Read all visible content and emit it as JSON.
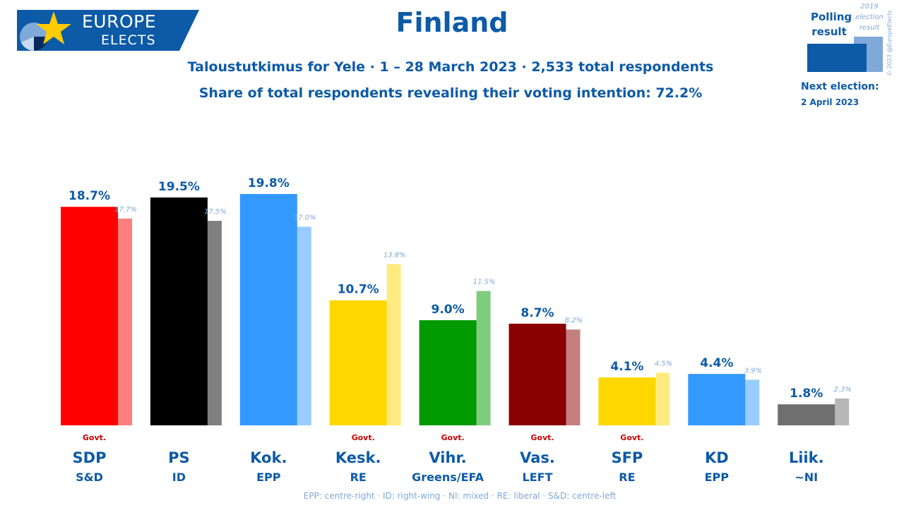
{
  "header": {
    "logo_line1": "EUROPE",
    "logo_line2": "ELECTS",
    "title": "Finland",
    "subtitle1": "Taloustutkimus for Yele · 1 – 28 March 2023 · 2,533 total respondents",
    "subtitle2": "Share of total respondents revealing their voting intention: 72.2%"
  },
  "legend": {
    "polling": "Polling result",
    "previous": "2019 election result",
    "next_label": "Next election:",
    "next_date": "2 April 2023",
    "copyright": "© 2023 @EuropeElects"
  },
  "footer": "EPP: centre-right · ID: right-wing · NI: mixed · RE: liberal · S&D: centre-left",
  "colors": {
    "brand": "#0d5aa7",
    "previous_text": "#7fa9d8",
    "govt": "#cc0000"
  },
  "chart_data": {
    "type": "bar",
    "title": "Finland",
    "series": [
      {
        "name": "Polling result",
        "values": [
          18.7,
          19.5,
          19.8,
          10.7,
          9.0,
          8.7,
          4.1,
          4.4,
          1.8
        ]
      },
      {
        "name": "2019 election result",
        "values": [
          17.7,
          17.5,
          17.0,
          13.8,
          11.5,
          8.2,
          4.5,
          3.9,
          2.3
        ]
      }
    ],
    "parties": [
      {
        "name": "SDP",
        "group": "S&D",
        "poll": 18.7,
        "poll_label": "18.7%",
        "prev": 17.7,
        "prev_label": "17.7%",
        "govt": "Govt.",
        "color": "#ff0000",
        "color_prev": "#ff7f7f"
      },
      {
        "name": "PS",
        "group": "ID",
        "poll": 19.5,
        "poll_label": "19.5%",
        "prev": 17.5,
        "prev_label": "17.5%",
        "govt": "",
        "color": "#000000",
        "color_prev": "#7f7f7f"
      },
      {
        "name": "Kok.",
        "group": "EPP",
        "poll": 19.8,
        "poll_label": "19.8%",
        "prev": 17.0,
        "prev_label": "17.0%",
        "govt": "",
        "color": "#3399ff",
        "color_prev": "#99ccff"
      },
      {
        "name": "Kesk.",
        "group": "RE",
        "poll": 10.7,
        "poll_label": "10.7%",
        "prev": 13.8,
        "prev_label": "13.8%",
        "govt": "Govt.",
        "color": "#ffd700",
        "color_prev": "#ffeb7f"
      },
      {
        "name": "Vihr.",
        "group": "Greens/EFA",
        "poll": 9.0,
        "poll_label": "9.0%",
        "prev": 11.5,
        "prev_label": "11.5%",
        "govt": "Govt.",
        "color": "#009900",
        "color_prev": "#7fcc7f"
      },
      {
        "name": "Vas.",
        "group": "LEFT",
        "poll": 8.7,
        "poll_label": "8.7%",
        "prev": 8.2,
        "prev_label": "8.2%",
        "govt": "Govt.",
        "color": "#8b0000",
        "color_prev": "#c57f7f"
      },
      {
        "name": "SFP",
        "group": "RE",
        "poll": 4.1,
        "poll_label": "4.1%",
        "prev": 4.5,
        "prev_label": "4.5%",
        "govt": "Govt.",
        "color": "#ffd700",
        "color_prev": "#ffeb7f"
      },
      {
        "name": "KD",
        "group": "EPP",
        "poll": 4.4,
        "poll_label": "4.4%",
        "prev": 3.9,
        "prev_label": "3.9%",
        "govt": "",
        "color": "#3399ff",
        "color_prev": "#99ccff"
      },
      {
        "name": "Liik.",
        "group": "~NI",
        "poll": 1.8,
        "poll_label": "1.8%",
        "prev": 2.3,
        "prev_label": "2.3%",
        "govt": "",
        "color": "#6f6f6f",
        "color_prev": "#b7b7b7"
      }
    ],
    "ylim": [
      0,
      19.8
    ],
    "xlabel": "",
    "ylabel": "",
    "grid": false,
    "legend": "top-right"
  }
}
